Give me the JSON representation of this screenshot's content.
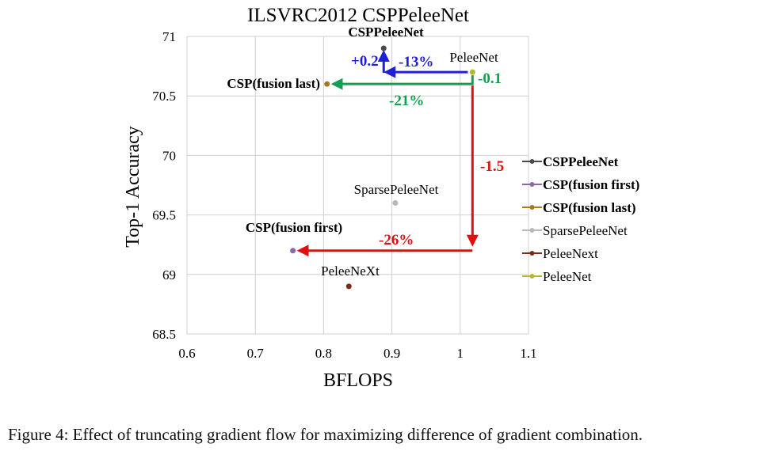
{
  "caption": "Figure 4: Effect of truncating gradient flow for maximizing difference of gradient combination.",
  "chart_data": {
    "type": "scatter",
    "title": "ILSVRC2012 CSPPeleeNet",
    "xlabel": "BFLOPS",
    "ylabel": "Top-1 Accuracy",
    "xlim": [
      0.6,
      1.1
    ],
    "ylim": [
      68.5,
      71
    ],
    "xticks": [
      "0.6",
      "0.7",
      "0.8",
      "0.9",
      "1",
      "1.1"
    ],
    "yticks": [
      "68.5",
      "69",
      "69.5",
      "70",
      "70.5",
      "71"
    ],
    "grid": true,
    "legend_position": "right",
    "series": [
      {
        "name": "CSPPeleeNet",
        "label": "CSPPeleeNet",
        "x": 0.888,
        "y": 70.9,
        "color": "#4a4a4a",
        "bold": true
      },
      {
        "name": "CSP(fusion first)",
        "label": "CSP(fusion first)",
        "x": 0.755,
        "y": 69.2,
        "color": "#8a6aa0",
        "bold": true
      },
      {
        "name": "CSP(fusion last)",
        "label": "CSP(fusion last)",
        "x": 0.805,
        "y": 70.6,
        "color": "#a77a1f",
        "bold": true
      },
      {
        "name": "SparsePeleeNet",
        "label": "SparsePeleeNet",
        "x": 0.905,
        "y": 69.6,
        "color": "#b8b8b8",
        "bold": false
      },
      {
        "name": "PeleeNext",
        "label": "PeleeNeXt",
        "x": 0.837,
        "y": 68.9,
        "color": "#7b2b1c",
        "bold": false
      },
      {
        "name": "PeleeNet",
        "label": "PeleeNet",
        "x": 1.018,
        "y": 70.7,
        "color": "#b5b832",
        "bold": false
      }
    ],
    "annotations": [
      {
        "text": "+0.2",
        "color": "#1f1fd8"
      },
      {
        "text": "-13%",
        "color": "#1f1fd8"
      },
      {
        "text": "-0.1",
        "color": "#14a050"
      },
      {
        "text": "-21%",
        "color": "#14a050"
      },
      {
        "text": "-1.5",
        "color": "#e01010"
      },
      {
        "text": "-26%",
        "color": "#e01010"
      }
    ]
  }
}
